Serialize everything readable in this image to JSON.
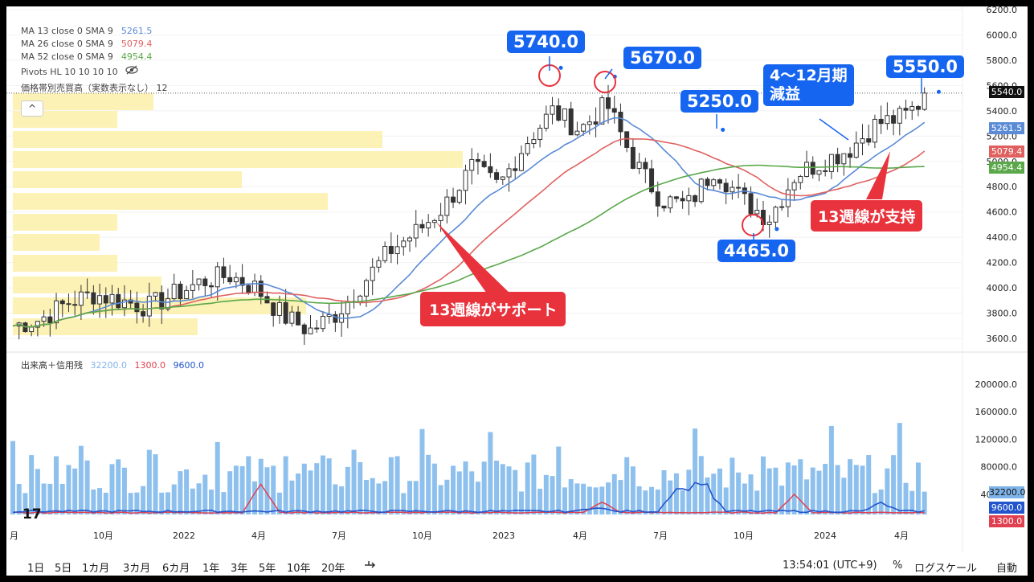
{
  "legend": {
    "ma13": {
      "label": "MA 13 close 0 SMA 9",
      "value": "5261.5",
      "color": "#5b8bd6"
    },
    "ma26": {
      "label": "MA 26 close 0 SMA 9",
      "value": "5079.4",
      "color": "#e06060"
    },
    "ma52": {
      "label": "MA 52 close 0 SMA 9",
      "value": "4954.4",
      "color": "#5aa84a"
    },
    "pivots": "Pivots HL 10 10 10 10",
    "vp": "価格帯別売買高（実数表示なし） 12",
    "collapse": "^"
  },
  "price_axis": {
    "ticks": [
      "6200.0",
      "6000.0",
      "5800.0",
      "5600.0",
      "5400.0",
      "5200.0",
      "5000.0",
      "4800.0",
      "4600.0",
      "4400.0",
      "4200.0",
      "4000.0",
      "3800.0",
      "3600.0"
    ],
    "badges": {
      "last": "5540.0",
      "ma13": "5261.5",
      "ma26": "5079.4",
      "ma52": "4954.4"
    }
  },
  "volume_axis": {
    "ticks": [
      "200000.0",
      "160000.0",
      "120000.0",
      "80000.0",
      "40000.0"
    ],
    "badges": {
      "volume": "32200.0",
      "margin_sell": "9600.0",
      "margin_buy": "1300.0"
    }
  },
  "volume_legend": {
    "label": "出来高＋信用残",
    "v1": "32200.0",
    "v2": "1300.0",
    "v3": "9600.0"
  },
  "time_axis": [
    "月",
    "10月",
    "2022",
    "4月",
    "7月",
    "10月",
    "2023",
    "4月",
    "7月",
    "10月",
    "2024",
    "4月"
  ],
  "callouts": {
    "c5740": "5740.0",
    "c5670": "5670.0",
    "c5250": "5250.0",
    "c5550": "5550.0",
    "c4465": "4465.0",
    "profit_drop": [
      "4〜12月期",
      "減益"
    ],
    "support13": "13週線が支持",
    "support13b": "13週線がサポート"
  },
  "bottom_bar": {
    "timeframes": [
      "1日",
      "5日",
      "1カ月",
      "3カ月",
      "6カ月",
      "1年",
      "3年",
      "5年",
      "10年",
      "20年"
    ],
    "clock": "13:54:01 (UTC+9)",
    "percent": "%",
    "log": "ログスケール",
    "auto": "自動"
  },
  "tv_logo": "17",
  "chart_data": {
    "type": "candlestick",
    "period": "weekly",
    "x_start": "2021-07",
    "x_end": "2024-05",
    "ylim": [
      3500,
      6250
    ],
    "moving_averages": [
      {
        "name": "MA 13",
        "last": 5261.5
      },
      {
        "name": "MA 26",
        "last": 5079.4
      },
      {
        "name": "MA 52",
        "last": 4954.4
      }
    ],
    "close_path": [
      [
        "2021-07",
        3700
      ],
      [
        "2021-08",
        3750
      ],
      [
        "2021-09",
        3880
      ],
      [
        "2021-10",
        3950
      ],
      [
        "2021-11",
        3900
      ],
      [
        "2021-12",
        3850
      ],
      [
        "2022-01",
        3950
      ],
      [
        "2022-02",
        4050
      ],
      [
        "2022-03",
        4100
      ],
      [
        "2022-04",
        4000
      ],
      [
        "2022-05",
        3780
      ],
      [
        "2022-06",
        3660
      ],
      [
        "2022-07",
        3800
      ],
      [
        "2022-08",
        4050
      ],
      [
        "2022-09",
        4300
      ],
      [
        "2022-10",
        4450
      ],
      [
        "2022-11",
        4650
      ],
      [
        "2022-12",
        4950
      ],
      [
        "2023-01",
        4800
      ],
      [
        "2023-02",
        5150
      ],
      [
        "2023-03",
        5400
      ],
      [
        "2023-04",
        5250
      ],
      [
        "2023-05",
        5450
      ],
      [
        "2023-06",
        5000
      ],
      [
        "2023-07",
        4700
      ],
      [
        "2023-08",
        4650
      ],
      [
        "2023-09",
        4950
      ],
      [
        "2023-10",
        4700
      ],
      [
        "2023-11",
        4550
      ],
      [
        "2023-12",
        4900
      ],
      [
        "2024-01",
        5000
      ],
      [
        "2024-02",
        5100
      ],
      [
        "2024-03",
        5300
      ],
      [
        "2024-04",
        5350
      ],
      [
        "2024-05",
        5540
      ]
    ],
    "pivots": [
      {
        "date": "2023-03",
        "value": 5740.0
      },
      {
        "date": "2023-05",
        "value": 5670.0
      },
      {
        "date": "2023-09",
        "value": 5250.0
      },
      {
        "date": "2023-11",
        "value": 4465.0
      },
      {
        "date": "2024-05",
        "value": 5550.0
      }
    ],
    "volume_ylim": [
      0,
      220000
    ],
    "volume_last": 32200.0,
    "margin_sell_last": 9600.0,
    "margin_buy_last": 1300.0
  }
}
